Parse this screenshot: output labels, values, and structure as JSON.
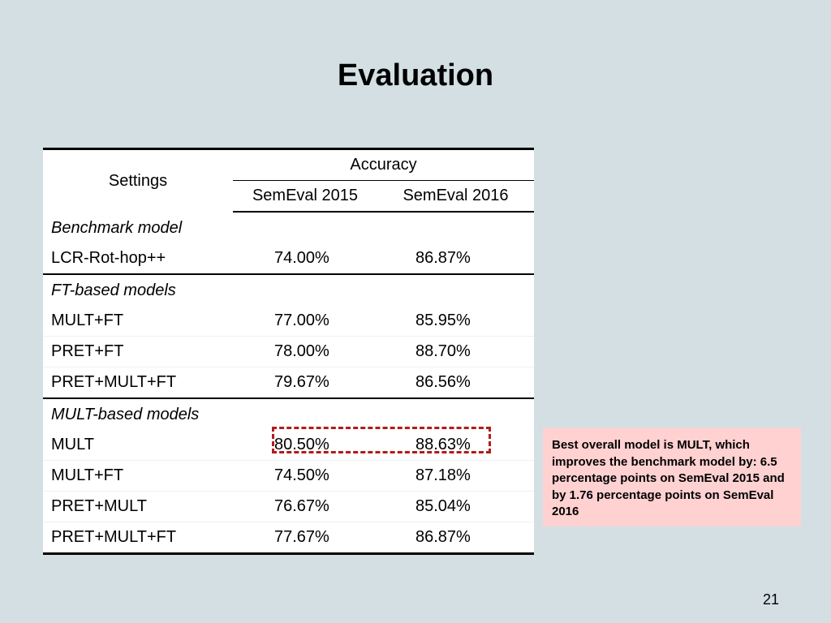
{
  "slide": {
    "title": "Evaluation",
    "page_number": "21"
  },
  "table": {
    "header": {
      "settings": "Settings",
      "accuracy": "Accuracy",
      "semeval2015": "SemEval 2015",
      "semeval2016": "SemEval 2016"
    },
    "groups": [
      {
        "label": "Benchmark model",
        "rows": [
          {
            "model": "LCR-Rot-hop++",
            "semeval2015": "74.00%",
            "semeval2016": "86.87%"
          }
        ]
      },
      {
        "label": "FT-based models",
        "rows": [
          {
            "model": "MULT+FT",
            "semeval2015": "77.00%",
            "semeval2016": "85.95%"
          },
          {
            "model": "PRET+FT",
            "semeval2015": "78.00%",
            "semeval2016": "88.70%"
          },
          {
            "model": "PRET+MULT+FT",
            "semeval2015": "79.67%",
            "semeval2016": "86.56%"
          }
        ]
      },
      {
        "label": "MULT-based models",
        "rows": [
          {
            "model": "MULT",
            "semeval2015": "80.50%",
            "semeval2016": "88.63%"
          },
          {
            "model": "MULT+FT",
            "semeval2015": "74.50%",
            "semeval2016": "87.18%"
          },
          {
            "model": "PRET+MULT",
            "semeval2015": "76.67%",
            "semeval2016": "85.04%"
          },
          {
            "model": "PRET+MULT+FT",
            "semeval2015": "77.67%",
            "semeval2016": "86.87%"
          }
        ]
      }
    ]
  },
  "highlight": {
    "color": "#b01c1c"
  },
  "note": {
    "text": "Best overall model is MULT, which improves the benchmark model by: 6.5 percentage points on SemEval 2015 and by 1.76 percentage points on SemEval 2016",
    "background": "#ffd1d1"
  }
}
